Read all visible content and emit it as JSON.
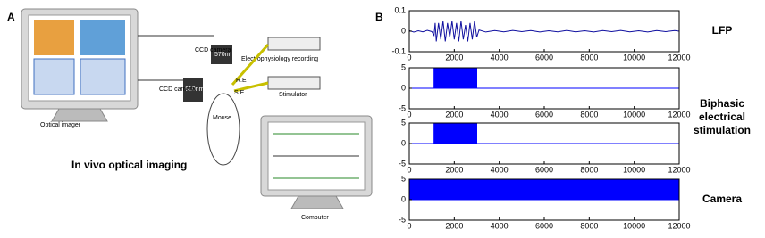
{
  "panels": {
    "a": "A",
    "b": "B"
  },
  "diagram": {
    "optical_imager": "Optical imager",
    "ccd_camera_top": "CCD camera",
    "filter_top": "570nm",
    "ccd_camera_left": "CCD camera",
    "filter_left": "610nm",
    "electrophysiology": "Electrophysiology recording",
    "re": "R.E",
    "se": "S.E",
    "stimulator": "Stimulator",
    "mouse": "Mouse",
    "computer": "Computer",
    "caption": "In vivo optical imaging"
  },
  "chart_data": [
    {
      "type": "line",
      "label": [
        "LFP"
      ],
      "color": "#1010a0",
      "xlim": [
        0,
        12000
      ],
      "ylim": [
        -0.1,
        0.1
      ],
      "xticks": [
        0,
        2000,
        4000,
        6000,
        8000,
        10000,
        12000
      ],
      "yticks": [
        -0.1,
        0,
        0.1
      ],
      "x": [
        0,
        200,
        400,
        600,
        800,
        1000,
        1100,
        1150,
        1200,
        1300,
        1400,
        1500,
        1600,
        1700,
        1800,
        1900,
        2000,
        2100,
        2200,
        2300,
        2400,
        2500,
        2600,
        2700,
        2800,
        2900,
        3000,
        3100,
        3400,
        3800,
        4200,
        4600,
        5000,
        5400,
        5800,
        6200,
        6600,
        7000,
        7400,
        7800,
        8200,
        8600,
        9000,
        9400,
        9800,
        10200,
        10600,
        11000,
        11400,
        11800,
        12000
      ],
      "values": [
        0.003,
        -0.004,
        0.002,
        -0.003,
        0.004,
        -0.002,
        -0.02,
        0.04,
        -0.05,
        0.04,
        -0.04,
        0.05,
        -0.05,
        0.04,
        -0.03,
        0.05,
        -0.04,
        0.04,
        -0.05,
        0.05,
        -0.04,
        0.03,
        -0.05,
        0.04,
        -0.04,
        0.05,
        -0.03,
        0.006,
        -0.004,
        0.003,
        -0.003,
        0.004,
        -0.002,
        0.003,
        -0.004,
        0.002,
        -0.003,
        0.004,
        -0.003,
        0.002,
        -0.004,
        0.003,
        -0.002,
        0.004,
        -0.003,
        0.002,
        -0.004,
        0.003,
        -0.002,
        0.003,
        0
      ]
    },
    {
      "type": "area",
      "label": [
        "Biphasic",
        "electrical",
        "stimulation"
      ],
      "color": "#0000ff",
      "xlim": [
        0,
        12000
      ],
      "ylim": [
        -5,
        5
      ],
      "xticks": [
        0,
        2000,
        4000,
        6000,
        8000,
        10000,
        12000
      ],
      "yticks": [
        -5,
        0,
        5
      ],
      "x": [
        0,
        1100,
        1100,
        3000,
        3000,
        12000
      ],
      "values": [
        0,
        0,
        5,
        5,
        0,
        0
      ]
    },
    {
      "type": "area",
      "color": "#0000ff",
      "xlim": [
        0,
        12000
      ],
      "ylim": [
        -5,
        5
      ],
      "xticks": [
        0,
        2000,
        4000,
        6000,
        8000,
        10000,
        12000
      ],
      "yticks": [
        -5,
        0,
        5
      ],
      "x": [
        0,
        1100,
        1100,
        3000,
        3000,
        12000
      ],
      "values": [
        0,
        0,
        5,
        5,
        0,
        0
      ]
    },
    {
      "type": "area",
      "label": [
        "Camera"
      ],
      "color": "#0000ff",
      "xlim": [
        0,
        12000
      ],
      "ylim": [
        -5,
        5
      ],
      "xticks": [
        0,
        2000,
        4000,
        6000,
        8000,
        10000,
        12000
      ],
      "yticks": [
        -5,
        0,
        5
      ],
      "x": [
        0,
        12000
      ],
      "values": [
        5,
        5
      ]
    }
  ]
}
